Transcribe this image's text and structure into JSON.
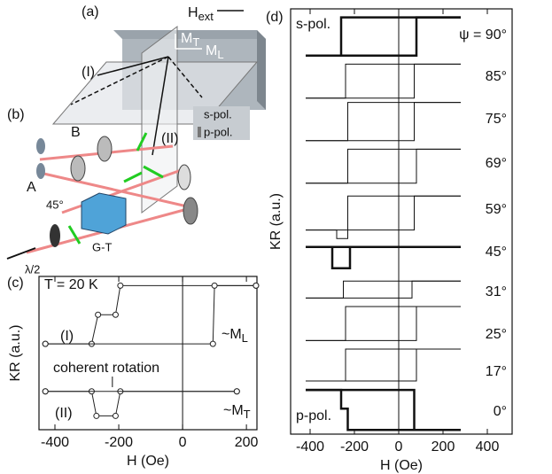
{
  "diagram": {
    "panel_a": "(a)",
    "H": "H",
    "ext": "ext",
    "MT": "M",
    "MT_sub": "T",
    "ML": "M",
    "ML_sub": "L",
    "I": "(I)",
    "II": "(II)",
    "s_pol": "s-pol.",
    "p_pol": "p-pol.",
    "panel_b": "(b)",
    "A": "A",
    "B": "B",
    "angle": "45°",
    "GT": "G-T",
    "halfwave": "λ/2"
  },
  "chart_data": [
    {
      "type": "line",
      "panel": "(c)",
      "x_label": "H (Oe)",
      "y_label": "KR (a.u.)",
      "xlim": [
        -450,
        233
      ],
      "ylim": [
        0,
        10
      ],
      "xticks": [
        -400,
        -200,
        0,
        200
      ],
      "vline": 0,
      "markers": true,
      "line_width": 1,
      "annotations": [
        "T = 20 K",
        "(I)",
        "coherent rotation",
        "(II)"
      ],
      "sub_labels": [
        {
          "text": "~M",
          "sub": "L"
        },
        {
          "text": "~M",
          "sub": "T"
        }
      ],
      "series": [
        {
          "color": "#222",
          "x": [
            230,
            -195,
            -210,
            -265,
            -285,
            -430
          ],
          "values": [
            9.4,
            9.4,
            7.5,
            7.5,
            5.6,
            5.6
          ]
        },
        {
          "color": "#222",
          "x": [
            -430,
            95,
            100,
            230
          ],
          "values": [
            5.6,
            5.6,
            9.4,
            9.4
          ]
        },
        {
          "color": "#222",
          "x": [
            170,
            -195,
            -210,
            -270,
            -285,
            -430
          ],
          "values": [
            2.5,
            2.5,
            0.9,
            0.9,
            2.5,
            2.5
          ]
        },
        {
          "color": "#222",
          "x": [
            -430,
            170
          ],
          "values": [
            2.5,
            2.5
          ]
        }
      ]
    },
    {
      "type": "line",
      "panel": "(d)",
      "x_label": "H (Oe)",
      "y_label": "KR (a.u.)",
      "xlim": [
        -488,
        512
      ],
      "ylim": [
        0,
        100
      ],
      "xticks": [
        -400,
        -200,
        0,
        200,
        400
      ],
      "vline": 0,
      "markers": false,
      "line_width": 1,
      "annotations": [
        "s-pol.",
        "p-pol."
      ],
      "psi_labels": [
        "ψ = 90°",
        "85°",
        "75°",
        "69°",
        "59°",
        "45°",
        "31°",
        "25°",
        "17°",
        "0°"
      ],
      "series": [
        {
          "color": "#111",
          "line_width": 2.5,
          "x": [
            280,
            -260,
            -260,
            -420
          ],
          "values": [
            98,
            98,
            89,
            89
          ]
        },
        {
          "color": "#111",
          "line_width": 2.5,
          "x": [
            -420,
            80,
            80,
            280
          ],
          "values": [
            89,
            89,
            98,
            98
          ]
        },
        {
          "color": "#111",
          "x": [
            280,
            -240,
            -240,
            -420
          ],
          "values": [
            87,
            87,
            79,
            79
          ]
        },
        {
          "color": "#111",
          "x": [
            -420,
            70,
            70,
            280
          ],
          "values": [
            79,
            79,
            87,
            87
          ]
        },
        {
          "color": "#111",
          "x": [
            280,
            -230,
            -230,
            -420
          ],
          "values": [
            78,
            78,
            69,
            69
          ]
        },
        {
          "color": "#111",
          "x": [
            -420,
            70,
            70,
            280
          ],
          "values": [
            69,
            69,
            78,
            78
          ]
        },
        {
          "color": "#111",
          "x": [
            280,
            -230,
            -230,
            -420
          ],
          "values": [
            67,
            67,
            59,
            59
          ]
        },
        {
          "color": "#111",
          "x": [
            -420,
            80,
            80,
            280
          ],
          "values": [
            59,
            59,
            67,
            67
          ]
        },
        {
          "color": "#111",
          "x": [
            280,
            -230,
            -230,
            -280,
            -280,
            -420
          ],
          "values": [
            56,
            56,
            46,
            46,
            48,
            48
          ]
        },
        {
          "color": "#111",
          "x": [
            -420,
            70,
            70,
            280
          ],
          "values": [
            48,
            48,
            56,
            56
          ]
        },
        {
          "color": "#111",
          "line_width": 2.5,
          "x": [
            280,
            -220,
            -220,
            -300,
            -300,
            -420
          ],
          "values": [
            44,
            44,
            39,
            39,
            44,
            44
          ]
        },
        {
          "color": "#111",
          "line_width": 2.5,
          "x": [
            -420,
            280
          ],
          "values": [
            44,
            44
          ]
        },
        {
          "color": "#111",
          "x": [
            280,
            -250,
            -250,
            -420
          ],
          "values": [
            36,
            36,
            32,
            32
          ]
        },
        {
          "color": "#111",
          "x": [
            -420,
            60,
            60,
            280
          ],
          "values": [
            32,
            32,
            36,
            36
          ]
        },
        {
          "color": "#111",
          "x": [
            280,
            -240,
            -240,
            -420
          ],
          "values": [
            30,
            30,
            22,
            22
          ]
        },
        {
          "color": "#111",
          "x": [
            -420,
            80,
            80,
            280
          ],
          "values": [
            22,
            22,
            30,
            30
          ]
        },
        {
          "color": "#111",
          "x": [
            280,
            -240,
            -240,
            -420
          ],
          "values": [
            20,
            20,
            12.5,
            12.5
          ]
        },
        {
          "color": "#111",
          "x": [
            -420,
            80,
            80,
            280
          ],
          "values": [
            12.5,
            12.5,
            20,
            20
          ]
        },
        {
          "color": "#111",
          "line_width": 2.5,
          "x": [
            -420,
            70,
            70,
            280
          ],
          "values": [
            10.4,
            10.4,
            1,
            1
          ]
        },
        {
          "color": "#111",
          "line_width": 2.5,
          "x": [
            280,
            -230,
            -230,
            -260,
            -260,
            -420
          ],
          "values": [
            1,
            1,
            6,
            6,
            10.4,
            10.4
          ]
        }
      ]
    }
  ]
}
